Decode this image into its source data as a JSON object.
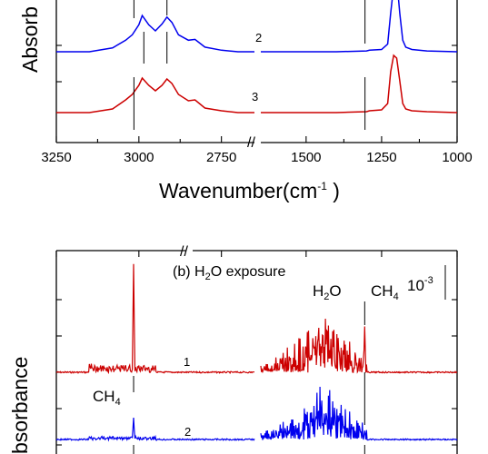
{
  "chart_data": [
    {
      "type": "line",
      "panel": "top",
      "xlabel": "Wavenumber(cm⁻¹ )",
      "xlabel_base": "Wavenumber(cm",
      "xlabel_sup": "-1",
      "xlabel_tail": " )",
      "ylabel": "Absorbance",
      "ylabel_visible": "Absorb",
      "axis_break": "//",
      "x_ticks_left": [
        "3250",
        "3000",
        "2750"
      ],
      "x_ticks_right": [
        "1500",
        "1250",
        "1000"
      ],
      "x_range_left": [
        3250,
        2650
      ],
      "x_range_right": [
        1650,
        1000
      ],
      "grid": false,
      "series": [
        {
          "name": "2",
          "color": "#0000ee",
          "left": {
            "x": [
              3250,
              3150,
              3080,
              3040,
              3020,
              3000,
              2990,
              2970,
              2950,
              2930,
              2915,
              2900,
              2880,
              2850,
              2830,
              2800,
              2750,
              2700,
              2650
            ],
            "y": [
              0.0,
              0.0,
              0.05,
              0.15,
              0.22,
              0.35,
              0.47,
              0.35,
              0.27,
              0.36,
              0.45,
              0.38,
              0.22,
              0.15,
              0.16,
              0.06,
              0.02,
              0.0,
              0.0
            ]
          },
          "right": {
            "x": [
              1650,
              1400,
              1300,
              1290,
              1250,
              1230,
              1220,
              1210,
              1200,
              1190,
              1180,
              1170,
              1150,
              1100,
              1000
            ],
            "y": [
              0.0,
              0.0,
              0.01,
              0.02,
              0.03,
              0.1,
              0.5,
              0.85,
              0.95,
              0.5,
              0.15,
              0.06,
              0.03,
              0.01,
              0.0
            ]
          }
        },
        {
          "name": "3",
          "color": "#cc0000",
          "left": {
            "x": [
              3250,
              3150,
              3080,
              3040,
              3020,
              3000,
              2990,
              2970,
              2950,
              2930,
              2915,
              2900,
              2880,
              2850,
              2830,
              2800,
              2750,
              2700,
              2650
            ],
            "y": [
              0.0,
              0.0,
              0.04,
              0.14,
              0.2,
              0.3,
              0.38,
              0.3,
              0.24,
              0.3,
              0.37,
              0.32,
              0.2,
              0.13,
              0.14,
              0.05,
              0.02,
              0.0,
              0.0
            ]
          },
          "right": {
            "x": [
              1650,
              1400,
              1300,
              1290,
              1250,
              1230,
              1220,
              1210,
              1200,
              1190,
              1180,
              1170,
              1150,
              1100,
              1000
            ],
            "y": [
              0.0,
              0.0,
              0.01,
              0.02,
              0.03,
              0.1,
              0.45,
              0.63,
              0.6,
              0.35,
              0.1,
              0.04,
              0.02,
              0.01,
              0.0
            ]
          }
        }
      ],
      "markers_wavenumber": [
        3015,
        2985,
        2915,
        1305
      ]
    },
    {
      "type": "line",
      "panel": "bottom",
      "title": "(b) H₂O exposure",
      "title_prefix": "(b) H",
      "title_sub": "2",
      "title_suffix": "O exposure",
      "ylabel": "Absorbance",
      "ylabel_visible": "bsorbance",
      "axis_break": "//",
      "x_range_left": [
        3250,
        2650
      ],
      "x_range_right": [
        1650,
        1000
      ],
      "grid": false,
      "scale_bar": {
        "label": "10⁻³",
        "base": "10",
        "sup": "-3"
      },
      "annotations": [
        {
          "name": "h2o-label",
          "base": "H",
          "sub": "2",
          "tail": "O",
          "x": 1460
        },
        {
          "name": "ch4-label-right",
          "base": "CH",
          "sub": "4",
          "tail": "",
          "x": 1306
        },
        {
          "name": "ch4-label-left",
          "base": "CH",
          "sub": "4",
          "tail": "",
          "x": 3016
        }
      ],
      "series": [
        {
          "name": "1",
          "color": "#cc0000",
          "features": {
            "ch4_peak_x": 3016,
            "ch4_peak_height": 1.0,
            "band_left": [
              3150,
              2950
            ],
            "band_right": [
              1900,
              1300
            ],
            "ch4_right_x": 1306
          }
        },
        {
          "name": "2",
          "color": "#0000ee",
          "features": {
            "ch4_peak_x": 3016,
            "ch4_peak_height": 0.22,
            "band_left": [
              3150,
              2950
            ],
            "band_right": [
              1900,
              1300
            ],
            "ch4_right_x": 1306
          }
        }
      ]
    }
  ]
}
